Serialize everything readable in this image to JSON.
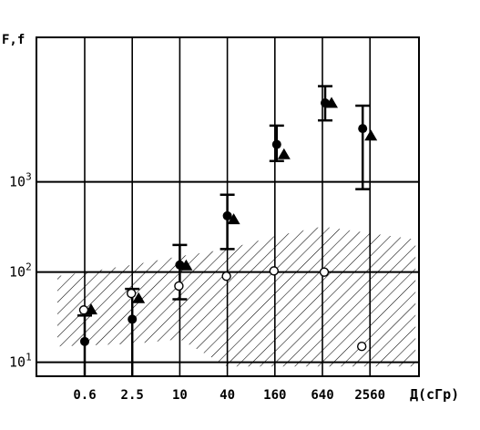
{
  "chart_data": {
    "type": "scatter",
    "ylabel": "F,f",
    "xlabel": "Д(сГр)",
    "y_scale": "log",
    "ylim": [
      7,
      40000
    ],
    "y_gridlines": [
      10,
      100,
      1000
    ],
    "y_tick_labels": [
      {
        "value": 10,
        "base": "10",
        "exp": "1"
      },
      {
        "value": 100,
        "base": "10",
        "exp": "2"
      },
      {
        "value": 1000,
        "base": "10",
        "exp": "3"
      }
    ],
    "x_categories": [
      "0.6",
      "2.5",
      "10",
      "40",
      "160",
      "640",
      "2560"
    ],
    "series": [
      {
        "marker": "filled-circle",
        "points": [
          {
            "x": "0.6",
            "y": 17,
            "err": [
              7,
              33
            ]
          },
          {
            "x": "2.5",
            "y": 30,
            "err": [
              7,
              65
            ]
          },
          {
            "x": "10",
            "y": 120,
            "err": [
              50,
              200
            ]
          },
          {
            "x": "40",
            "y": 420,
            "err": [
              180,
              720
            ]
          },
          {
            "x": "160",
            "y": 2600,
            "err": [
              1700,
              4200
            ]
          },
          {
            "x": "640",
            "y": 7500,
            "err": [
              4800,
              11500
            ]
          },
          {
            "x": "2560",
            "y": 3900,
            "err": [
              830,
              7000
            ]
          }
        ]
      },
      {
        "marker": "filled-triangle",
        "points": [
          {
            "x": "0.6",
            "y": 39
          },
          {
            "x": "2.5",
            "y": 52
          },
          {
            "x": "10",
            "y": 120
          },
          {
            "x": "40",
            "y": 390
          },
          {
            "x": "160",
            "y": 2050
          },
          {
            "x": "640",
            "y": 7600
          },
          {
            "x": "2560",
            "y": 3300
          }
        ]
      },
      {
        "marker": "open-circle",
        "points": [
          {
            "x": "0.6",
            "y": 38
          },
          {
            "x": "2.5",
            "y": 58
          },
          {
            "x": "10",
            "y": 70
          },
          {
            "x": "40",
            "y": 90
          },
          {
            "x": "160",
            "y": 103
          },
          {
            "x": "640",
            "y": 100
          },
          {
            "x": "2560",
            "y": 15
          }
        ]
      }
    ],
    "shaded_region": {
      "style": "diagonal-hatch",
      "upper_boundary": [
        {
          "x": "0.6",
          "y": 90
        },
        {
          "x": "2.5",
          "y": 120
        },
        {
          "x": "10",
          "y": 150
        },
        {
          "x": "40",
          "y": 180
        },
        {
          "x": "160",
          "y": 250
        },
        {
          "x": "640",
          "y": 320
        },
        {
          "x": "2560",
          "y": 230
        }
      ],
      "lower_boundary": [
        {
          "x": "0.6",
          "y": 15
        },
        {
          "x": "2.5",
          "y": 16
        },
        {
          "x": "10",
          "y": 18
        },
        {
          "x": "40",
          "y": 9
        },
        {
          "x": "160",
          "y": 9
        },
        {
          "x": "640",
          "y": 9
        },
        {
          "x": "2560",
          "y": 9
        }
      ]
    },
    "grid": true
  }
}
